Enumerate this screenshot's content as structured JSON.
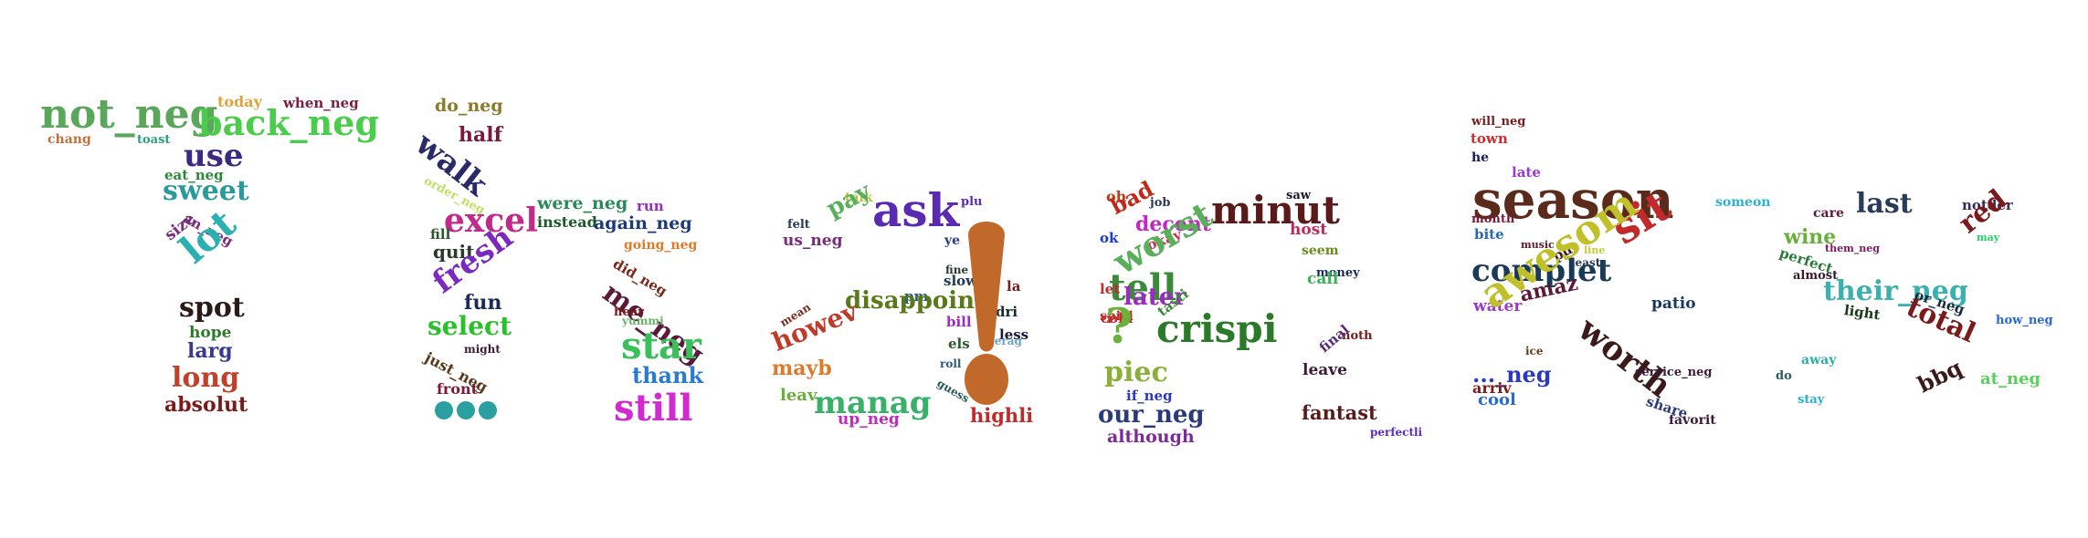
{
  "words": [
    {
      "text": "not_neg",
      "color": "#5aa65a"
    },
    {
      "text": "today",
      "color": "#e3a33b"
    },
    {
      "text": "when_neg",
      "color": "#7a1f3d"
    },
    {
      "text": "back_neg",
      "color": "#4ccc4c"
    },
    {
      "text": "chang",
      "color": "#c0703a"
    },
    {
      "text": "toast",
      "color": "#2aa07a"
    },
    {
      "text": "use",
      "color": "#3a2a80"
    },
    {
      "text": "eat_neg",
      "color": "#2a8a3a"
    },
    {
      "text": "sweet",
      "color": "#2a9a9a"
    },
    {
      "text": "an_neg",
      "color": "#7a2a7a"
    },
    {
      "text": "size",
      "color": "#7a2a7a"
    },
    {
      "text": "lot",
      "color": "#2ab0b0"
    },
    {
      "text": "spot",
      "color": "#2a1a1a"
    },
    {
      "text": "hope",
      "color": "#2a7a2a"
    },
    {
      "text": "larg",
      "color": "#3a3a8a"
    },
    {
      "text": "long",
      "color": "#c0402a"
    },
    {
      "text": "absolut",
      "color": "#7a1a1a"
    },
    {
      "text": "do_neg",
      "color": "#8a7a2a"
    },
    {
      "text": "half",
      "color": "#7a1a3a"
    },
    {
      "text": "walk",
      "color": "#2a2a6a"
    },
    {
      "text": "order_neg",
      "color": "#c0e060"
    },
    {
      "text": "excel",
      "color": "#c02a8a"
    },
    {
      "text": "fill",
      "color": "#2a5a2a"
    },
    {
      "text": "quit",
      "color": "#2a3a2a"
    },
    {
      "text": "fresh",
      "color": "#7a2ac0"
    },
    {
      "text": "fun",
      "color": "#1a2a5a"
    },
    {
      "text": "select",
      "color": "#2ac02a"
    },
    {
      "text": "might",
      "color": "#3a1a3a"
    },
    {
      "text": "just_neg",
      "color": "#5a3a1a"
    },
    {
      "text": "front",
      "color": "#7a1a3a"
    },
    {
      "text": "were_neg",
      "color": "#2a8a5a"
    },
    {
      "text": "run",
      "color": "#9a2ac0"
    },
    {
      "text": "instead",
      "color": "#1a5a2a"
    },
    {
      "text": "again_neg",
      "color": "#1a3a7a"
    },
    {
      "text": "going_neg",
      "color": "#e07a2a"
    },
    {
      "text": "did_neg",
      "color": "#7a2a1a"
    },
    {
      "text": "me_neg",
      "color": "#5a1a3a"
    },
    {
      "text": "hear",
      "color": "#7a1a1a"
    },
    {
      "text": "yummi",
      "color": "#6ab06a"
    },
    {
      "text": "star",
      "color": "#3ac05a"
    },
    {
      "text": "thank",
      "color": "#2a7ad0"
    },
    {
      "text": "still",
      "color": "#d02ad0"
    },
    {
      "text": "talk",
      "color": "#c0c03a"
    },
    {
      "text": "pay",
      "color": "#5ab05a"
    },
    {
      "text": "ask",
      "color": "#5a2ab0"
    },
    {
      "text": "plu",
      "color": "#5a2ab0"
    },
    {
      "text": "felt",
      "color": "#2a3a5a"
    },
    {
      "text": "us_neg",
      "color": "#7a2a7a"
    },
    {
      "text": "ye",
      "color": "#2a3a7a"
    },
    {
      "text": "fine",
      "color": "#2a3a2a"
    },
    {
      "text": "slow",
      "color": "#1a3a5a"
    },
    {
      "text": "pm",
      "color": "#2a5a7a"
    },
    {
      "text": "disappoint",
      "color": "#5a7a1a"
    },
    {
      "text": "la",
      "color": "#7a1a1a"
    },
    {
      "text": "dri",
      "color": "#1a2a2a"
    },
    {
      "text": "bill",
      "color": "#9a2ac0"
    },
    {
      "text": "less",
      "color": "#1a1a3a"
    },
    {
      "text": "averag",
      "color": "#6aa0d0"
    },
    {
      "text": "mean",
      "color": "#7a2a1a"
    },
    {
      "text": "howev",
      "color": "#c03a2a"
    },
    {
      "text": "els",
      "color": "#2a5a2a"
    },
    {
      "text": "mayb",
      "color": "#e07a2a"
    },
    {
      "text": "roll",
      "color": "#2a5a7a"
    },
    {
      "text": "guess",
      "color": "#2a5a5a"
    },
    {
      "text": "leav",
      "color": "#6ab03a"
    },
    {
      "text": "manag",
      "color": "#3ab06a"
    },
    {
      "text": "up_neg",
      "color": "#c02ac0"
    },
    {
      "text": "highli",
      "color": "#c02a2a"
    },
    {
      "text": "oh",
      "color": "#c03a1a"
    },
    {
      "text": "job",
      "color": "#2a3a5a"
    },
    {
      "text": "bad",
      "color": "#c02a1a"
    },
    {
      "text": "saw",
      "color": "#1a1a2a"
    },
    {
      "text": "minut",
      "color": "#5a1a1a"
    },
    {
      "text": "decent",
      "color": "#c02ac0"
    },
    {
      "text": "host",
      "color": "#c02a5a"
    },
    {
      "text": "ok",
      "color": "#1a3ad0"
    },
    {
      "text": "okay",
      "color": "#d02a5a"
    },
    {
      "text": "seem",
      "color": "#6a8a1a"
    },
    {
      "text": "worst",
      "color": "#5ab05a"
    },
    {
      "text": "money",
      "color": "#1a2a5a"
    },
    {
      "text": "tell",
      "color": "#3a8a3a"
    },
    {
      "text": "call",
      "color": "#3ab05a"
    },
    {
      "text": "let",
      "color": "#c02a2a"
    },
    {
      "text": "later",
      "color": "#9a2ac0"
    },
    {
      "text": "spici",
      "color": "#c02a2a"
    },
    {
      "text": "tasti",
      "color": "#3a8a3a"
    },
    {
      "text": "cold",
      "color": "#c02a2a"
    },
    {
      "text": "crispi",
      "color": "#2a7a2a"
    },
    {
      "text": "noth",
      "color": "#7a1a1a"
    },
    {
      "text": "final",
      "color": "#5a2a7a"
    },
    {
      "text": "piec",
      "color": "#8ab03a"
    },
    {
      "text": "leave",
      "color": "#3a1a3a"
    },
    {
      "text": "if_neg",
      "color": "#2a3ac0"
    },
    {
      "text": "our_neg",
      "color": "#2a3a7a"
    },
    {
      "text": "fantast",
      "color": "#5a1a1a"
    },
    {
      "text": "although",
      "color": "#7a2a9a"
    },
    {
      "text": "perfectli",
      "color": "#5a2ac0"
    },
    {
      "text": "will_neg",
      "color": "#7a1a1a"
    },
    {
      "text": "town",
      "color": "#d02a2a"
    },
    {
      "text": "he",
      "color": "#1a1a5a"
    },
    {
      "text": "late",
      "color": "#9a3ad0"
    },
    {
      "text": "season",
      "color": "#5a2a1a"
    },
    {
      "text": "someon",
      "color": "#2ab0d0"
    },
    {
      "text": "month",
      "color": "#7a1a3a"
    },
    {
      "text": "bite",
      "color": "#2a6ab0"
    },
    {
      "text": "music",
      "color": "#5a1a2a"
    },
    {
      "text": "sit",
      "color": "#c02a2a"
    },
    {
      "text": "line",
      "color": "#c0d03a"
    },
    {
      "text": "complet",
      "color": "#1a3a5a"
    },
    {
      "text": "put",
      "color": "#3a1a2a"
    },
    {
      "text": "least",
      "color": "#2a3a5a"
    },
    {
      "text": "amaz",
      "color": "#5a1a3a"
    },
    {
      "text": "water",
      "color": "#9a3ad0"
    },
    {
      "text": "awesom",
      "color": "#c0c02a"
    },
    {
      "text": "patio",
      "color": "#1a3a5a"
    },
    {
      "text": "worth",
      "color": "#3a1a1a"
    },
    {
      "text": "ice",
      "color": "#5a3a1a"
    },
    {
      "text": "..._neg",
      "color": "#2a3ac0"
    },
    {
      "text": "service_neg",
      "color": "#3a1a3a"
    },
    {
      "text": "arriv",
      "color": "#7a1a1a"
    },
    {
      "text": "share",
      "color": "#2a3a7a"
    },
    {
      "text": "cool",
      "color": "#2a6ad0"
    },
    {
      "text": "favorit",
      "color": "#3a1a3a"
    },
    {
      "text": "care",
      "color": "#5a1a3a"
    },
    {
      "text": "last",
      "color": "#2a3a5a"
    },
    {
      "text": "notder",
      "color": "#3a2a5a"
    },
    {
      "text": "red",
      "color": "#7a1a1a"
    },
    {
      "text": "wine",
      "color": "#6ab03a"
    },
    {
      "text": "them_neg",
      "color": "#7a1a5a"
    },
    {
      "text": "may",
      "color": "#2ad06a"
    },
    {
      "text": "perfect",
      "color": "#2a7a3a"
    },
    {
      "text": "almost",
      "color": "#3a1a2a"
    },
    {
      "text": "their_neg",
      "color": "#3ab0b0"
    },
    {
      "text": "or_neg",
      "color": "#1a2a3a"
    },
    {
      "text": "light",
      "color": "#1a3a1a"
    },
    {
      "text": "total",
      "color": "#7a1a1a"
    },
    {
      "text": "how_neg",
      "color": "#2a6ad0"
    },
    {
      "text": "away",
      "color": "#2ab0a0"
    },
    {
      "text": "do",
      "color": "#2a5a5a"
    },
    {
      "text": "bbq",
      "color": "#3a1a1a"
    },
    {
      "text": "at_neg",
      "color": "#5ad05a"
    },
    {
      "text": "stay",
      "color": "#2ab0d0"
    }
  ],
  "glyphs": {
    "ellipsis_color": "#2aa0a0",
    "question_color": "#6ab03a",
    "exclamation_color": "#c0692a"
  }
}
